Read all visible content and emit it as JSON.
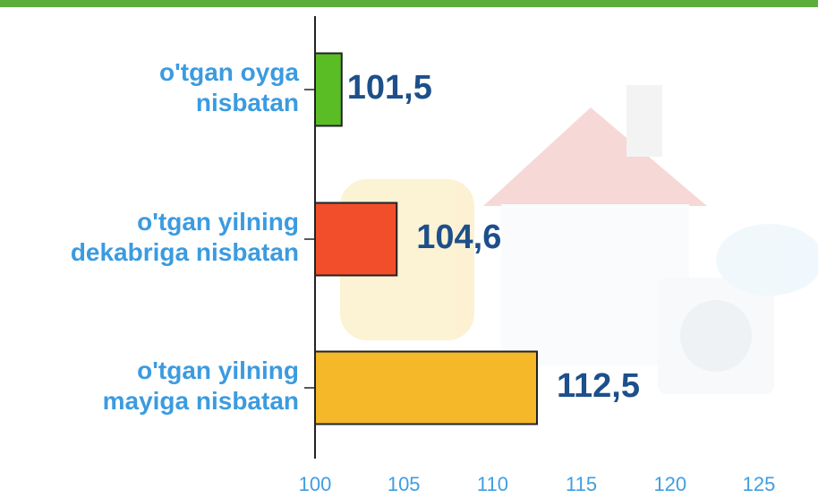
{
  "chart_data": {
    "type": "barh",
    "categories": [
      "o'tgan oyga\nnisbatan",
      "o'tgan yilning\ndekabriga nisbatan",
      "o'tgan yilning\nmayiga nisbatan"
    ],
    "values": [
      101.5,
      104.6,
      112.5
    ],
    "value_labels": [
      "101,5",
      "104,6",
      "112,5"
    ],
    "colors": [
      "#5bbd25",
      "#f24e2b",
      "#f4b829"
    ],
    "xlim": [
      100,
      125
    ],
    "xticks": [
      100,
      105,
      110,
      115,
      120,
      125
    ]
  }
}
